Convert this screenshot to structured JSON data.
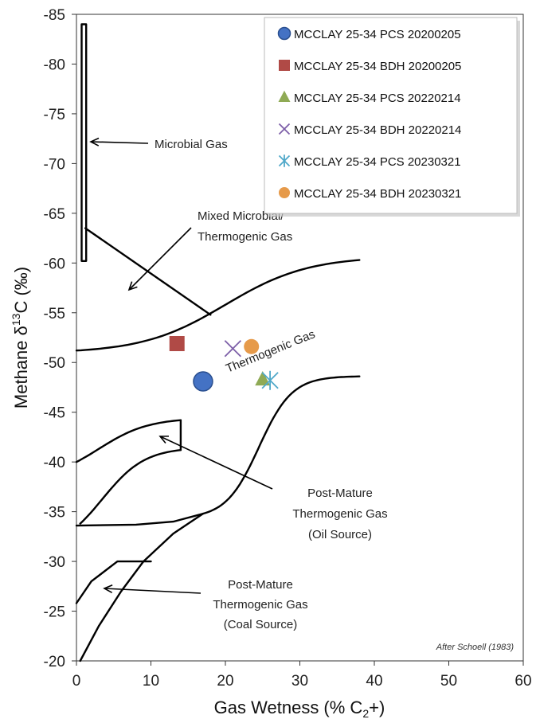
{
  "chart_data": {
    "type": "scatter",
    "title": "",
    "xlabel": "Gas Wetness (% C",
    "xlabel_sub": "2",
    "xlabel_tail": "+)",
    "ylabel": "Methane  δ",
    "ylabel_sup": "13",
    "ylabel_tail": "C (‰)",
    "xlim": [
      0,
      60
    ],
    "ylim": [
      -85,
      -20
    ],
    "y_reversed": true,
    "grid": false,
    "legend_position": "top-right",
    "x_ticks": [
      0,
      10,
      20,
      30,
      40,
      50,
      60
    ],
    "y_ticks": [
      -85,
      -80,
      -75,
      -70,
      -65,
      -60,
      -55,
      -50,
      -45,
      -40,
      -35,
      -30,
      -25,
      -20
    ],
    "series": [
      {
        "name": "MCCLAY 25-34 PCS 20200205",
        "marker": "circle",
        "color": "#4472C4",
        "x": [
          17
        ],
        "y": [
          -48.1
        ]
      },
      {
        "name": "MCCLAY 25-34 BDH 20200205",
        "marker": "square",
        "color": "#B04A46",
        "x": [
          13.5
        ],
        "y": [
          -51.9
        ]
      },
      {
        "name": "MCCLAY 25-34 PCS 20220214",
        "marker": "triangle",
        "color": "#8FAA55",
        "x": [
          25
        ],
        "y": [
          -48.3
        ]
      },
      {
        "name": "MCCLAY 25-34 BDH 20220214",
        "marker": "x",
        "color": "#7D5FA8",
        "x": [
          21
        ],
        "y": [
          -51.4
        ]
      },
      {
        "name": "MCCLAY 25-34 PCS 20230321",
        "marker": "star",
        "color": "#4FA8C9",
        "x": [
          26
        ],
        "y": [
          -48.2
        ]
      },
      {
        "name": "MCCLAY 25-34 BDH 20230321",
        "marker": "circle-small",
        "color": "#E69A4A",
        "x": [
          23.5
        ],
        "y": [
          -51.6
        ]
      }
    ],
    "annotations": [
      {
        "text": "Microbial Gas"
      },
      {
        "text": "Mixed Microbial/"
      },
      {
        "text": "Thermogenic Gas"
      },
      {
        "text": "Thermogenic Gas"
      },
      {
        "text": "Post-Mature"
      },
      {
        "text": "Thermogenic Gas"
      },
      {
        "text": "(Oil Source)"
      },
      {
        "text": "Post-Mature"
      },
      {
        "text": "Thermogenic Gas"
      },
      {
        "text": "(Coal Source)"
      },
      {
        "text": "After Schoell (1983)"
      }
    ]
  }
}
